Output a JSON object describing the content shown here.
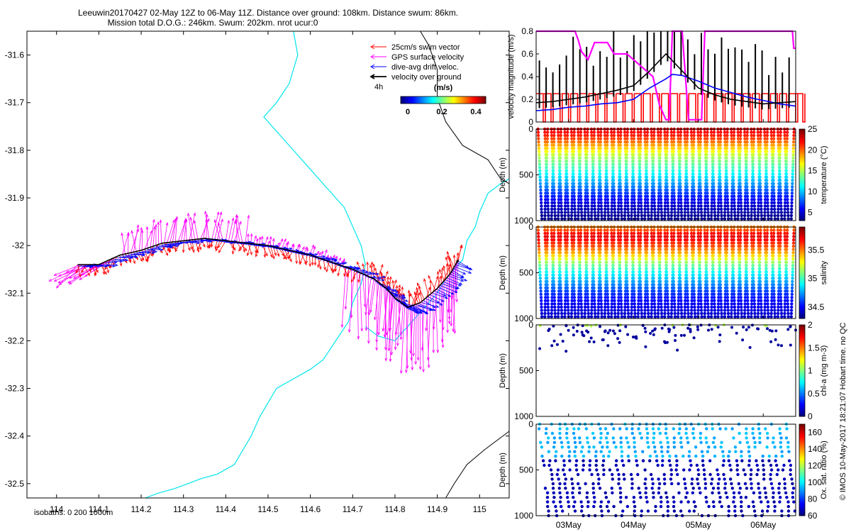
{
  "header": {
    "title_line1": "Leeuwin20170427 02-May 12Z to 06-May 11Z. Distance over ground: 108km. Distance swum: 86km.",
    "title_line2": "Mission total D.O.G.: 246km. Swum: 202km. nrot ucur:0"
  },
  "footer": {
    "isobaths_label": "isobaths: 0   200  1000m",
    "imos_stamp": "© IMOS 10-May-2017 18:21:07 Hobart time. no QC"
  },
  "colors": {
    "coast": "#00e5ee",
    "isobath": "#000000",
    "swim": "#ff0000",
    "gps": "#ff00ff",
    "drift": "#0000ff",
    "dog": "#000000"
  },
  "chart_data": [
    {
      "type": "scatter",
      "name": "map",
      "xlim": [
        113.93,
        115.07
      ],
      "ylim": [
        -32.53,
        -31.55
      ],
      "xticks": [
        114,
        114.1,
        114.2,
        114.3,
        114.4,
        114.5,
        114.6,
        114.7,
        114.8,
        114.9,
        115
      ],
      "xtick_labels": [
        "114",
        "114.1",
        "114.2",
        "114.3",
        "114.4",
        "114.5",
        "114.6",
        "114.7",
        "114.8",
        "114.9",
        "115"
      ],
      "yticks": [
        -31.6,
        -31.7,
        -31.8,
        -31.9,
        -32,
        -32.1,
        -32.2,
        -32.3,
        -32.4,
        -32.5
      ],
      "ytick_labels": [
        "-31.6",
        "-31.7",
        "-31.8",
        "-31.9",
        "-32",
        "-32.1",
        "-32.2",
        "-32.3",
        "-32.4",
        "-32.5"
      ],
      "legend": {
        "position": "top-right",
        "entries": [
          "25cm/s swim vector",
          "GPS surface velocity",
          "dive-avg drift veloc.",
          "velocity over ground"
        ],
        "scale_label": "4h"
      },
      "colorbar": {
        "title": "(m/s)",
        "range": [
          0,
          0.5
        ],
        "tick_values": [
          0,
          0.2,
          0.4
        ],
        "tick_labels": [
          "0",
          "0.2",
          "0.4"
        ]
      },
      "track": {
        "lon": [
          114.05,
          114.1,
          114.15,
          114.2,
          114.25,
          114.3,
          114.35,
          114.4,
          114.45,
          114.5,
          114.55,
          114.6,
          114.65,
          114.7,
          114.75,
          114.78,
          114.8,
          114.83,
          114.86,
          114.9,
          114.93,
          114.95
        ],
        "lat": [
          -32.04,
          -32.04,
          -32.02,
          -32.01,
          -31.995,
          -31.99,
          -31.985,
          -31.99,
          -31.995,
          -32.0,
          -32.01,
          -32.02,
          -32.035,
          -32.05,
          -32.07,
          -32.09,
          -32.11,
          -32.13,
          -32.12,
          -32.09,
          -32.06,
          -32.03
        ]
      },
      "coast_segments": [
        {
          "lon": [
            114.56,
            114.57,
            114.55,
            114.52,
            114.5,
            114.49,
            114.52,
            114.56,
            114.6,
            114.64,
            114.68,
            114.7,
            114.72,
            114.73,
            114.72,
            114.7,
            114.69,
            114.66,
            114.63,
            114.6,
            114.56,
            114.52,
            114.5,
            114.48,
            114.46,
            114.44,
            114.42,
            114.38,
            114.34,
            114.31,
            114.28,
            114.24,
            114.21
          ],
          "lat": [
            -31.55,
            -31.6,
            -31.66,
            -31.7,
            -31.72,
            -31.73,
            -31.76,
            -31.8,
            -31.84,
            -31.88,
            -31.92,
            -31.96,
            -32.0,
            -32.04,
            -32.08,
            -32.12,
            -32.16,
            -32.2,
            -32.24,
            -32.26,
            -32.28,
            -32.3,
            -32.33,
            -32.36,
            -32.4,
            -32.43,
            -32.46,
            -32.48,
            -32.49,
            -32.5,
            -32.51,
            -32.52,
            -32.53
          ]
        },
        {
          "lon": [
            114.73,
            114.76,
            114.8,
            114.83,
            114.87,
            114.9,
            114.92,
            114.94,
            114.96,
            114.97,
            114.99,
            115.0,
            115.02,
            115.05,
            115.07
          ],
          "lat": [
            -32.17,
            -32.19,
            -32.2,
            -32.17,
            -32.13,
            -32.1,
            -32.07,
            -32.05,
            -32.03,
            -31.99,
            -31.96,
            -31.93,
            -31.89,
            -31.87,
            -31.86
          ]
        }
      ],
      "isobath_segments": [
        {
          "lon": [
            114.86,
            114.88,
            114.9,
            114.9,
            114.92,
            114.96,
            115.02,
            115.05,
            115.07
          ],
          "lat": [
            -31.55,
            -31.58,
            -31.63,
            -31.69,
            -31.74,
            -31.79,
            -31.82,
            -31.86,
            -31.87
          ]
        },
        {
          "lon": [
            114.92,
            114.94,
            114.97,
            115.01,
            115.04,
            115.07
          ],
          "lat": [
            -32.53,
            -32.5,
            -32.46,
            -32.43,
            -32.41,
            -32.39
          ]
        }
      ]
    },
    {
      "type": "line",
      "name": "velocity",
      "xlim": [
        0,
        4
      ],
      "xtick_positions": [
        0.5,
        1.5,
        2.5,
        3.5
      ],
      "xtick_labels": [
        "03May",
        "04May",
        "05May",
        "06May"
      ],
      "ylim": [
        0,
        0.8
      ],
      "yticks": [
        0,
        0.2,
        0.4,
        0.6,
        0.8
      ],
      "ytick_labels": [
        "0",
        "0.2",
        "0.4",
        "0.6",
        "0.8"
      ],
      "ylabel": "velocity magnitude (m/s)",
      "series": [
        {
          "name": "swim",
          "color": "#ff0000",
          "x": [
            0.0,
            0.12,
            0.26,
            0.39,
            0.53,
            0.67,
            0.81,
            0.95,
            1.09,
            1.23,
            1.37,
            1.51,
            1.65,
            1.79,
            1.93,
            2.07,
            2.21,
            2.35,
            2.49,
            2.63,
            2.77,
            2.91,
            3.05,
            3.19,
            3.33,
            3.47,
            3.61,
            3.75,
            3.89,
            4.0
          ],
          "y": [
            0.25,
            0.25,
            0.25,
            0.25,
            0.25,
            0.25,
            0.25,
            0.25,
            0.25,
            0.25,
            0.25,
            0.25,
            0.25,
            0.25,
            0.25,
            0.25,
            0.25,
            0.25,
            0.25,
            0.25,
            0.25,
            0.25,
            0.25,
            0.25,
            0.25,
            0.25,
            0.25,
            0.25,
            0.25,
            0.25
          ]
        },
        {
          "name": "gps",
          "color": "#ff00ff",
          "x": [
            0.0,
            0.05,
            0.1,
            0.6,
            0.65,
            0.7,
            0.8,
            0.9,
            1.1,
            1.2,
            1.4,
            1.6,
            1.8,
            1.9,
            2.0,
            2.05,
            2.1,
            2.25,
            2.35,
            2.55,
            2.6,
            2.7,
            2.9,
            3.2,
            3.6,
            3.95,
            3.97,
            4.0
          ],
          "y": [
            0.8,
            0.8,
            0.8,
            0.8,
            0.72,
            0.62,
            0.55,
            0.7,
            0.7,
            0.6,
            0.6,
            0.5,
            0.4,
            0.15,
            0.02,
            0.02,
            0.8,
            0.8,
            0.02,
            0.02,
            0.8,
            0.8,
            0.8,
            0.8,
            0.8,
            0.8,
            0.65,
            0.65
          ]
        },
        {
          "name": "drift",
          "color": "#0000ff",
          "x": [
            0.0,
            0.25,
            0.5,
            0.75,
            1.0,
            1.25,
            1.5,
            1.75,
            2.0,
            2.1,
            2.25,
            2.5,
            2.75,
            3.0,
            3.25,
            3.5,
            3.75,
            4.0
          ],
          "y": [
            0.1,
            0.11,
            0.13,
            0.14,
            0.16,
            0.17,
            0.2,
            0.3,
            0.38,
            0.42,
            0.41,
            0.36,
            0.3,
            0.26,
            0.22,
            0.19,
            0.16,
            0.14
          ]
        },
        {
          "name": "dog",
          "color": "#000000",
          "x": [
            0.0,
            0.25,
            0.5,
            0.75,
            1.0,
            1.25,
            1.5,
            1.75,
            2.0,
            2.25,
            2.5,
            2.75,
            3.0,
            3.25,
            3.5,
            3.75,
            4.0
          ],
          "y": [
            0.17,
            0.18,
            0.2,
            0.22,
            0.25,
            0.28,
            0.32,
            0.45,
            0.6,
            0.45,
            0.3,
            0.24,
            0.2,
            0.18,
            0.16,
            0.17,
            0.18
          ]
        }
      ]
    },
    {
      "type": "scatter",
      "name": "temperature",
      "ylabel": "Depth (m)",
      "ylim": [
        1000,
        0
      ],
      "yticks": [
        0,
        500,
        1000
      ],
      "ytick_labels": [
        "0",
        "500",
        "1000"
      ],
      "colorbar": {
        "label": "temperature (°C)",
        "range": [
          3,
          25
        ],
        "tick_values": [
          5,
          10,
          15,
          20,
          25
        ],
        "tick_labels": [
          "5",
          "10",
          "15",
          "20",
          "25"
        ]
      },
      "profile": {
        "depth": [
          0,
          100,
          200,
          300,
          400,
          500,
          600,
          700,
          800,
          900,
          1000
        ],
        "value": [
          23,
          21,
          18,
          15,
          13,
          11,
          9,
          7,
          5,
          4,
          3
        ]
      },
      "dive_count": 38
    },
    {
      "type": "scatter",
      "name": "salinity",
      "ylabel": "Depth (m)",
      "ylim": [
        1000,
        0
      ],
      "yticks": [
        0,
        500,
        1000
      ],
      "ytick_labels": [
        "0",
        "500",
        "1000"
      ],
      "colorbar": {
        "label": "salinity",
        "range": [
          34.3,
          35.9
        ],
        "tick_values": [
          34.5,
          35,
          35.5
        ],
        "tick_labels": [
          "34.5",
          "35",
          "35.5"
        ]
      },
      "profile": {
        "depth": [
          0,
          100,
          200,
          300,
          400,
          500,
          600,
          700,
          800,
          900,
          1000
        ],
        "value": [
          35.5,
          35.75,
          35.6,
          35.4,
          35.1,
          34.9,
          34.75,
          34.6,
          34.5,
          34.45,
          34.4
        ]
      },
      "dive_count": 38
    },
    {
      "type": "scatter",
      "name": "chlorophyll",
      "ylabel": "Depth (m)",
      "ylim": [
        1000,
        0
      ],
      "yticks": [
        0,
        500,
        1000
      ],
      "ytick_labels": [
        "0",
        "500",
        "1000"
      ],
      "colorbar": {
        "label": "chl-a (mg m-3)",
        "range": [
          0,
          2
        ],
        "tick_values": [
          0,
          0.5,
          1,
          1.5,
          2
        ],
        "tick_labels": [
          "0",
          "0.5",
          "1",
          "1.5",
          "2"
        ]
      },
      "depth_max": 300
    },
    {
      "type": "scatter",
      "name": "oxygen",
      "ylabel": "Depth (m)",
      "ylim": [
        1000,
        0
      ],
      "yticks": [
        0,
        500,
        1000
      ],
      "ytick_labels": [
        "0",
        "500",
        "1000"
      ],
      "xtick_positions": [
        0.5,
        1.5,
        2.5,
        3.5
      ],
      "xtick_labels": [
        "03May",
        "04May",
        "05May",
        "06May"
      ],
      "colorbar": {
        "label": "Ox. sat. ratio (%)",
        "range": [
          60,
          170
        ],
        "tick_values": [
          60,
          80,
          100,
          120,
          140,
          160
        ],
        "tick_labels": [
          "60",
          "80",
          "100",
          "120",
          "140",
          "160"
        ]
      }
    }
  ]
}
